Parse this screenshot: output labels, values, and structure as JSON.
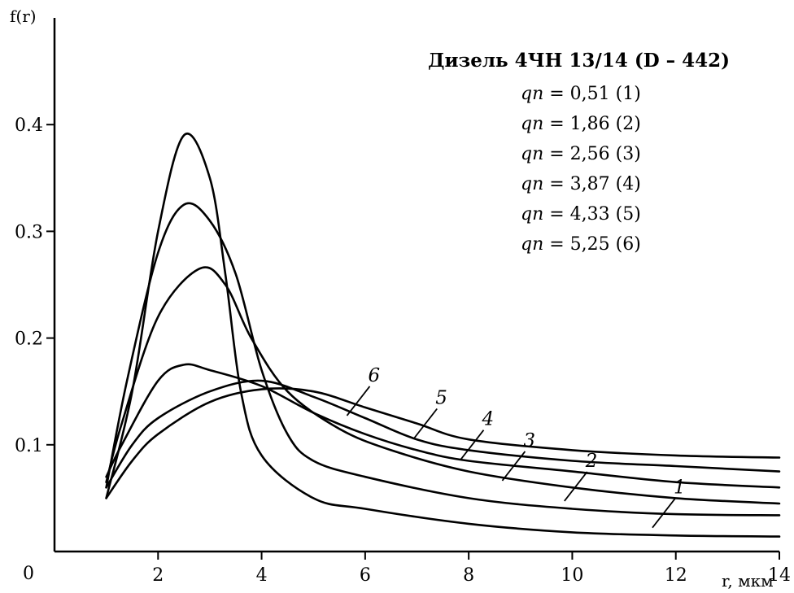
{
  "chart_data": {
    "type": "line",
    "title": "Дизель 4ЧН 13/14 (D – 442)",
    "xlabel": "r, мкм",
    "ylabel": "f(r)",
    "xlim": [
      0,
      14
    ],
    "ylim": [
      0,
      0.5
    ],
    "origin_label": "0",
    "x_ticks": [
      2,
      4,
      6,
      8,
      10,
      12,
      14
    ],
    "x_tick_labels": [
      "2",
      "4",
      "6",
      "8",
      "10",
      "12",
      "14"
    ],
    "y_ticks": [
      0.1,
      0.2,
      0.3,
      0.4
    ],
    "y_tick_labels": [
      "0.1",
      "0.2",
      "0.3",
      "0.4"
    ],
    "grid": false,
    "legend_position": "top-right",
    "legend": [
      {
        "q": "qп",
        "text": " = 0,51 (1)"
      },
      {
        "q": "qп",
        "text": " = 1,86 (2)"
      },
      {
        "q": "qп",
        "text": " = 2,56 (3)"
      },
      {
        "q": "qп",
        "text": " = 3,87 (4)"
      },
      {
        "q": "qп",
        "text": " = 4,33 (5)"
      },
      {
        "q": "qп",
        "text": " = 5,25 (6)"
      }
    ],
    "series": [
      {
        "name": "1",
        "points": [
          [
            1.0,
            0.05
          ],
          [
            1.5,
            0.15
          ],
          [
            2.0,
            0.3
          ],
          [
            2.5,
            0.39
          ],
          [
            3.0,
            0.35
          ],
          [
            3.3,
            0.26
          ],
          [
            3.6,
            0.15
          ],
          [
            4.0,
            0.09
          ],
          [
            5.0,
            0.05
          ],
          [
            6.0,
            0.04
          ],
          [
            8.0,
            0.026
          ],
          [
            10.0,
            0.018
          ],
          [
            12.0,
            0.015
          ],
          [
            14.0,
            0.014
          ]
        ]
      },
      {
        "name": "2",
        "points": [
          [
            1.0,
            0.06
          ],
          [
            1.4,
            0.16
          ],
          [
            2.0,
            0.28
          ],
          [
            2.5,
            0.325
          ],
          [
            3.0,
            0.31
          ],
          [
            3.5,
            0.26
          ],
          [
            4.0,
            0.17
          ],
          [
            4.5,
            0.11
          ],
          [
            5.0,
            0.085
          ],
          [
            6.0,
            0.07
          ],
          [
            8.0,
            0.05
          ],
          [
            10.0,
            0.04
          ],
          [
            12.0,
            0.035
          ],
          [
            14.0,
            0.034
          ]
        ]
      },
      {
        "name": "3",
        "points": [
          [
            1.0,
            0.065
          ],
          [
            1.3,
            0.12
          ],
          [
            2.0,
            0.22
          ],
          [
            2.8,
            0.265
          ],
          [
            3.3,
            0.25
          ],
          [
            3.8,
            0.2
          ],
          [
            4.5,
            0.15
          ],
          [
            5.5,
            0.115
          ],
          [
            6.5,
            0.095
          ],
          [
            8.0,
            0.075
          ],
          [
            10.0,
            0.06
          ],
          [
            12.0,
            0.05
          ],
          [
            14.0,
            0.045
          ]
        ]
      },
      {
        "name": "4",
        "points": [
          [
            1.0,
            0.07
          ],
          [
            1.3,
            0.1
          ],
          [
            2.0,
            0.16
          ],
          [
            2.5,
            0.175
          ],
          [
            3.0,
            0.17
          ],
          [
            4.0,
            0.155
          ],
          [
            5.0,
            0.13
          ],
          [
            6.0,
            0.11
          ],
          [
            7.0,
            0.095
          ],
          [
            8.0,
            0.085
          ],
          [
            10.0,
            0.075
          ],
          [
            12.0,
            0.065
          ],
          [
            14.0,
            0.06
          ]
        ]
      },
      {
        "name": "5",
        "points": [
          [
            1.0,
            0.06
          ],
          [
            1.5,
            0.1
          ],
          [
            2.0,
            0.125
          ],
          [
            3.0,
            0.15
          ],
          [
            4.0,
            0.16
          ],
          [
            5.0,
            0.145
          ],
          [
            6.0,
            0.125
          ],
          [
            7.0,
            0.105
          ],
          [
            8.0,
            0.095
          ],
          [
            10.0,
            0.085
          ],
          [
            12.0,
            0.08
          ],
          [
            14.0,
            0.075
          ]
        ]
      },
      {
        "name": "6",
        "points": [
          [
            1.0,
            0.05
          ],
          [
            1.5,
            0.085
          ],
          [
            2.0,
            0.11
          ],
          [
            3.0,
            0.14
          ],
          [
            4.0,
            0.152
          ],
          [
            5.0,
            0.15
          ],
          [
            6.0,
            0.135
          ],
          [
            7.0,
            0.12
          ],
          [
            8.0,
            0.105
          ],
          [
            10.0,
            0.095
          ],
          [
            12.0,
            0.09
          ],
          [
            14.0,
            0.088
          ]
        ]
      }
    ],
    "curve_labels": [
      {
        "text": "6",
        "x": 5.9,
        "y": 0.138
      },
      {
        "text": "5",
        "x": 7.2,
        "y": 0.117
      },
      {
        "text": "4",
        "x": 8.1,
        "y": 0.097
      },
      {
        "text": "3",
        "x": 8.9,
        "y": 0.077
      },
      {
        "text": "2",
        "x": 10.1,
        "y": 0.058
      },
      {
        "text": "1",
        "x": 11.8,
        "y": 0.033
      }
    ]
  }
}
